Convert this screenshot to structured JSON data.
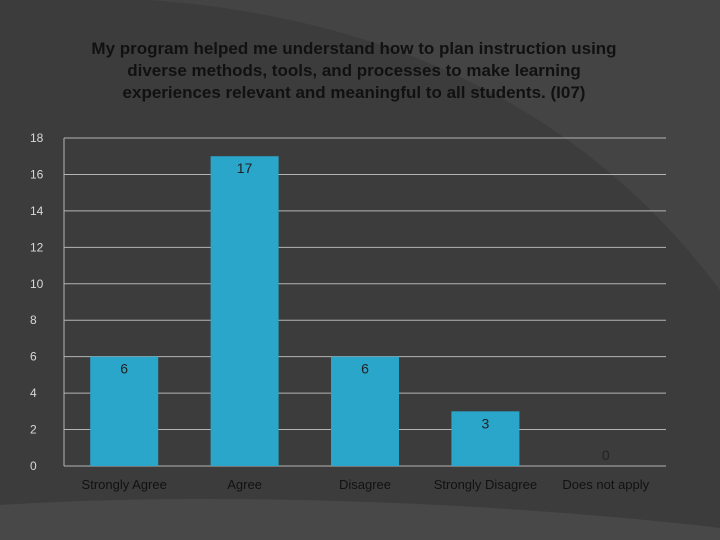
{
  "chart_data": {
    "type": "bar",
    "title": "My program helped me understand how to plan instruction using diverse methods, tools, and processes to make learning experiences relevant and meaningful to all students. (I07)",
    "categories": [
      "Strongly Agree",
      "Agree",
      "Disagree",
      "Strongly Disagree",
      "Does not apply"
    ],
    "values": [
      6,
      17,
      6,
      3,
      0
    ],
    "data_labels": [
      "6",
      "17",
      "6",
      "3",
      "0"
    ],
    "yticks": [
      "0",
      "2",
      "4",
      "6",
      "8",
      "10",
      "12",
      "14",
      "16",
      "18"
    ],
    "ylim": [
      0,
      18
    ],
    "grid": true,
    "bar_color": "#2ba6cb",
    "grid_color": "#b4b4b4",
    "background_color": "#3c3c3c"
  }
}
